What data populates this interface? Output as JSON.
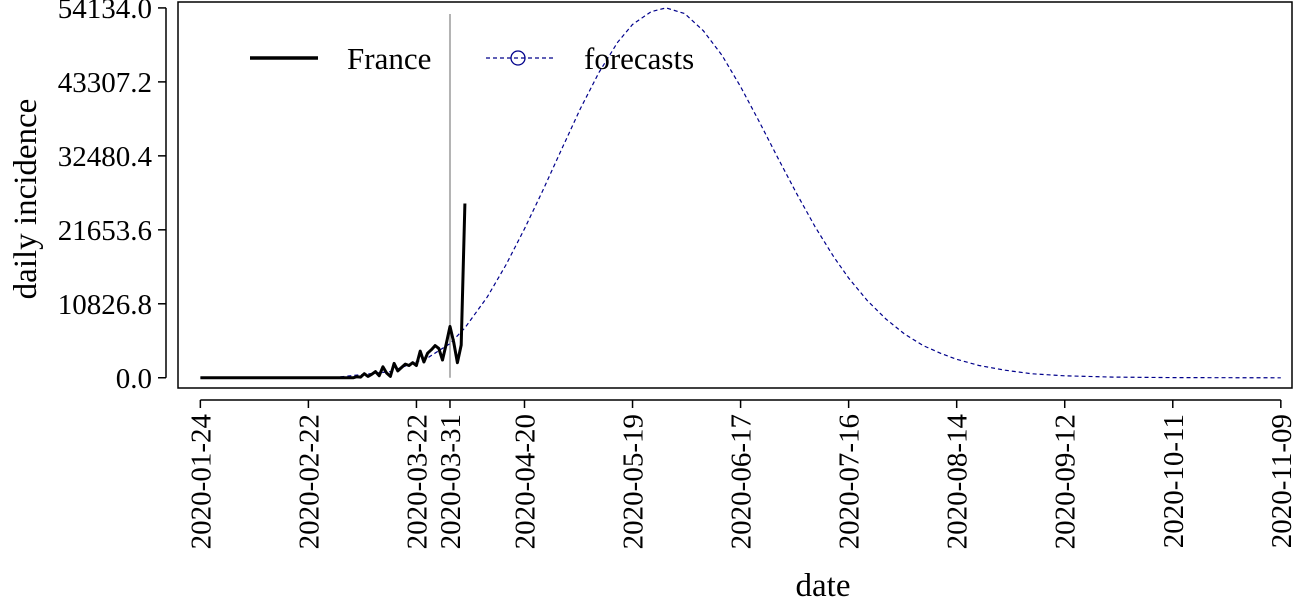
{
  "colors": {
    "observed": "#000000",
    "forecast": "#00008b",
    "cutoff_line": "#b3b3b3",
    "frame": "#000000"
  },
  "chart_data": {
    "type": "line",
    "title": "",
    "xlabel": "date",
    "ylabel": "daily incidence",
    "x_type": "date",
    "xlim": [
      "2020-01-18",
      "2020-11-12"
    ],
    "ylim": [
      -1500,
      55000
    ],
    "x_ticks": [
      "2020-01-24",
      "2020-02-22",
      "2020-03-22",
      "2020-03-31",
      "2020-04-20",
      "2020-05-19",
      "2020-06-17",
      "2020-07-16",
      "2020-08-14",
      "2020-09-12",
      "2020-10-11",
      "2020-11-09"
    ],
    "y_ticks": [
      "0.0",
      "10826.8",
      "21653.6",
      "32480.4",
      "43307.2",
      "54134.0"
    ],
    "y_tick_values": [
      0,
      10826.8,
      21653.6,
      32480.4,
      43307.2,
      54134.0
    ],
    "cutoff_date": "2020-03-31",
    "grid": false,
    "legend_position": "top-left",
    "series": [
      {
        "name": "France",
        "style": "solid",
        "points": [
          [
            "2020-01-24",
            0
          ],
          [
            "2020-02-01",
            0
          ],
          [
            "2020-02-10",
            0
          ],
          [
            "2020-02-20",
            0
          ],
          [
            "2020-02-28",
            0
          ],
          [
            "2020-03-05",
            0
          ],
          [
            "2020-03-06",
            150
          ],
          [
            "2020-03-07",
            100
          ],
          [
            "2020-03-08",
            600
          ],
          [
            "2020-03-09",
            200
          ],
          [
            "2020-03-10",
            500
          ],
          [
            "2020-03-11",
            900
          ],
          [
            "2020-03-12",
            300
          ],
          [
            "2020-03-13",
            1600
          ],
          [
            "2020-03-14",
            700
          ],
          [
            "2020-03-15",
            200
          ],
          [
            "2020-03-16",
            2100
          ],
          [
            "2020-03-17",
            1000
          ],
          [
            "2020-03-18",
            1500
          ],
          [
            "2020-03-19",
            2000
          ],
          [
            "2020-03-20",
            1800
          ],
          [
            "2020-03-21",
            2200
          ],
          [
            "2020-03-22",
            1800
          ],
          [
            "2020-03-23",
            3900
          ],
          [
            "2020-03-24",
            2300
          ],
          [
            "2020-03-25",
            3600
          ],
          [
            "2020-03-26",
            4100
          ],
          [
            "2020-03-27",
            4700
          ],
          [
            "2020-03-28",
            4300
          ],
          [
            "2020-03-29",
            2600
          ],
          [
            "2020-03-30",
            5000
          ],
          [
            "2020-03-31",
            7500
          ],
          [
            "2020-04-01",
            5200
          ],
          [
            "2020-04-02",
            2200
          ],
          [
            "2020-04-03",
            4800
          ],
          [
            "2020-04-04",
            25500
          ]
        ]
      },
      {
        "name": "forecasts",
        "style": "dashed-circle",
        "peak_date": "2020-05-28",
        "peak_value": 54134.0,
        "points": [
          [
            "2020-01-24",
            0
          ],
          [
            "2020-02-15",
            0
          ],
          [
            "2020-03-01",
            100
          ],
          [
            "2020-03-15",
            900
          ],
          [
            "2020-03-25",
            2900
          ],
          [
            "2020-03-31",
            5000
          ],
          [
            "2020-04-04",
            7300
          ],
          [
            "2020-04-10",
            11800
          ],
          [
            "2020-04-15",
            16500
          ],
          [
            "2020-04-20",
            21800
          ],
          [
            "2020-04-25",
            27500
          ],
          [
            "2020-04-30",
            33500
          ],
          [
            "2020-05-05",
            39400
          ],
          [
            "2020-05-10",
            44700
          ],
          [
            "2020-05-15",
            49100
          ],
          [
            "2020-05-19",
            51700
          ],
          [
            "2020-05-24",
            53600
          ],
          [
            "2020-05-28",
            54134
          ],
          [
            "2020-06-02",
            53300
          ],
          [
            "2020-06-07",
            50800
          ],
          [
            "2020-06-12",
            47200
          ],
          [
            "2020-06-17",
            42600
          ],
          [
            "2020-06-22",
            37500
          ],
          [
            "2020-06-27",
            32200
          ],
          [
            "2020-07-02",
            27000
          ],
          [
            "2020-07-07",
            22100
          ],
          [
            "2020-07-12",
            17700
          ],
          [
            "2020-07-16",
            14600
          ],
          [
            "2020-07-21",
            11300
          ],
          [
            "2020-07-26",
            8600
          ],
          [
            "2020-07-31",
            6400
          ],
          [
            "2020-08-05",
            4700
          ],
          [
            "2020-08-10",
            3500
          ],
          [
            "2020-08-14",
            2700
          ],
          [
            "2020-08-20",
            1800
          ],
          [
            "2020-08-27",
            1100
          ],
          [
            "2020-09-03",
            600
          ],
          [
            "2020-09-12",
            280
          ],
          [
            "2020-09-25",
            90
          ],
          [
            "2020-10-11",
            20
          ],
          [
            "2020-11-09",
            0
          ]
        ]
      }
    ]
  }
}
